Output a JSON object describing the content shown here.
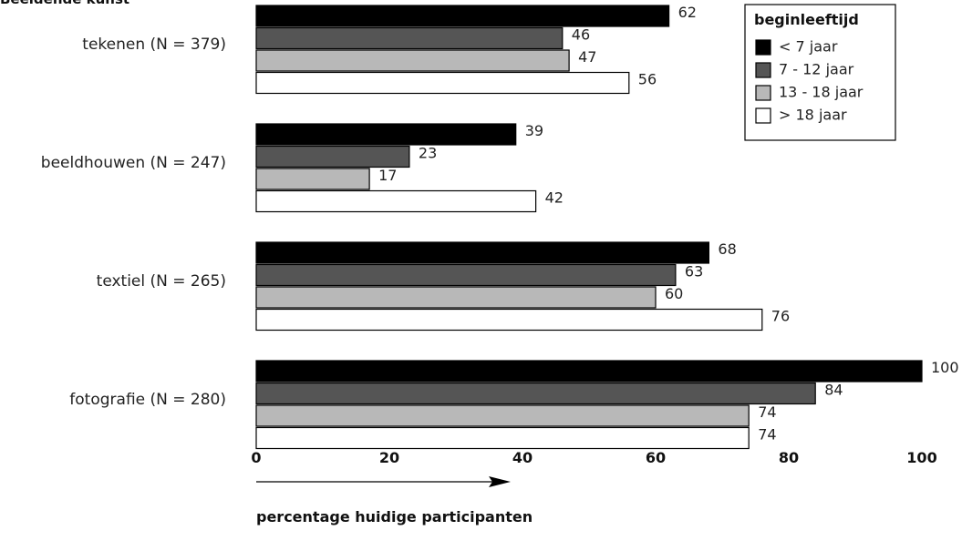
{
  "chart_data": {
    "type": "bar",
    "orientation": "horizontal",
    "title": "Beeldende kunst",
    "xlabel": "percentage huidige participanten",
    "ylabel": "",
    "xlim": [
      0,
      100
    ],
    "xticks": [
      0,
      20,
      40,
      60,
      80,
      100
    ],
    "categories": [
      "tekenen (N = 379)",
      "beeldhouwen (N = 247)",
      "textiel (N = 265)",
      "fotografie (N = 280)"
    ],
    "series": [
      {
        "name": "< 7 jaar",
        "color": "#000000",
        "values": [
          62,
          39,
          68,
          100
        ]
      },
      {
        "name": "7 - 12 jaar",
        "color": "#555555",
        "values": [
          46,
          23,
          63,
          84
        ]
      },
      {
        "name": "13 - 18 jaar",
        "color": "#b8b8b8",
        "values": [
          47,
          17,
          60,
          74
        ]
      },
      {
        "name": "> 18 jaar",
        "color": "#ffffff",
        "values": [
          56,
          42,
          76,
          74
        ]
      }
    ],
    "legend": {
      "title": "beginleeftijd",
      "position": "top-right"
    },
    "grid": false
  }
}
